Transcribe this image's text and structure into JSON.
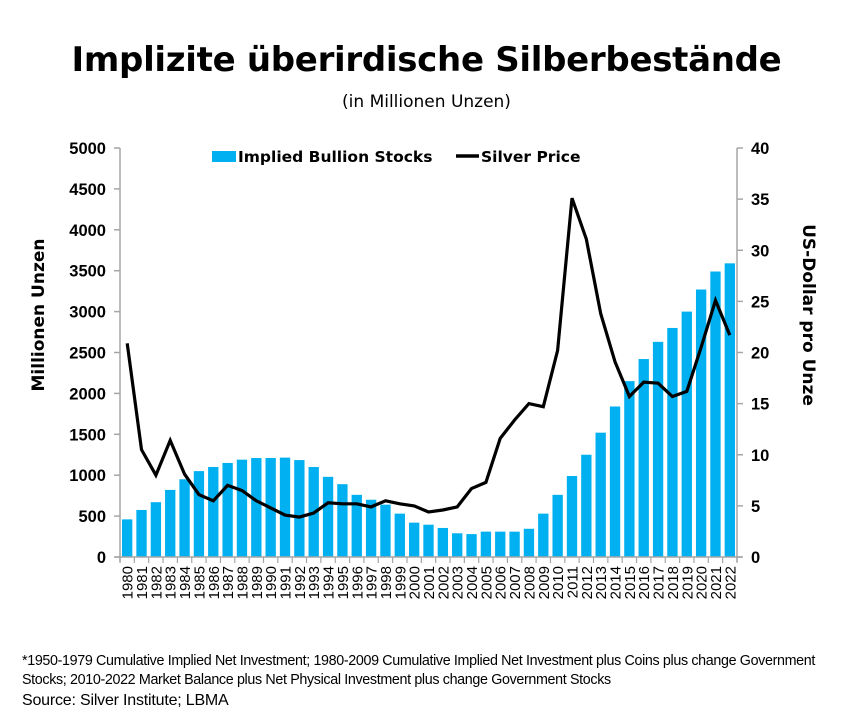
{
  "header": {
    "title": "Implizite überirdische Silberbestände",
    "subtitle": "(in Millionen Unzen)"
  },
  "footer": {
    "note": "*1950-1979 Cumulative Implied Net Investment; 1980-2009 Cumulative Implied Net Investment plus Coins plus change Government Stocks; 2010-2022 Market Balance plus Net Physical Investment plus change Government Stocks",
    "source": "Source: Silver Institute; LBMA"
  },
  "colors": {
    "bars": "#00b0f0",
    "line": "#000000",
    "axis": "#a6a6a6"
  },
  "chart_data": {
    "type": "bar",
    "title": "Implizite überirdische Silberbestände",
    "subtitle": "(in Millionen Unzen)",
    "xlabel": "",
    "ylabel": "Millionen Unzen",
    "y2label": "US-Dollar pro Unze",
    "ylim": [
      0,
      5000
    ],
    "y2lim": [
      0,
      40
    ],
    "yticks": [
      0,
      500,
      1000,
      1500,
      2000,
      2500,
      3000,
      3500,
      4000,
      4500,
      5000
    ],
    "y2ticks": [
      0,
      5,
      10,
      15,
      20,
      25,
      30,
      35,
      40
    ],
    "grid": false,
    "legend_position": "top-center",
    "categories": [
      "1980",
      "1981",
      "1982",
      "1983",
      "1984",
      "1985",
      "1986",
      "1987",
      "1988",
      "1989",
      "1990",
      "1991",
      "1992",
      "1993",
      "1994",
      "1995",
      "1996",
      "1997",
      "1998",
      "1999",
      "2000",
      "2001",
      "2002",
      "2003",
      "2004",
      "2005",
      "2006",
      "2007",
      "2008",
      "2009",
      "2010",
      "2011",
      "2012",
      "2013",
      "2014",
      "2015",
      "2016",
      "2017",
      "2018",
      "2019",
      "2020",
      "2021",
      "2022"
    ],
    "series": [
      {
        "name": "Implied Bullion Stocks",
        "type": "bar",
        "axis": "left",
        "values": [
          460,
          575,
          670,
          820,
          950,
          1050,
          1100,
          1150,
          1190,
          1210,
          1210,
          1215,
          1185,
          1100,
          980,
          890,
          760,
          700,
          640,
          530,
          420,
          395,
          355,
          290,
          280,
          310,
          310,
          310,
          345,
          530,
          760,
          990,
          1250,
          1520,
          1840,
          2150,
          2420,
          2630,
          2800,
          3000,
          3270,
          3490,
          3590
        ]
      },
      {
        "name": "Silver Price",
        "type": "line",
        "axis": "right",
        "values": [
          20.9,
          10.5,
          8.0,
          11.4,
          8.1,
          6.1,
          5.5,
          7.0,
          6.5,
          5.5,
          4.8,
          4.1,
          3.9,
          4.3,
          5.3,
          5.2,
          5.2,
          4.9,
          5.5,
          5.2,
          5.0,
          4.4,
          4.6,
          4.9,
          6.7,
          7.3,
          11.6,
          13.4,
          15.0,
          14.7,
          20.2,
          35.1,
          31.1,
          23.8,
          19.1,
          15.7,
          17.1,
          17.0,
          15.7,
          16.2,
          20.5,
          25.1,
          21.7
        ]
      }
    ]
  }
}
